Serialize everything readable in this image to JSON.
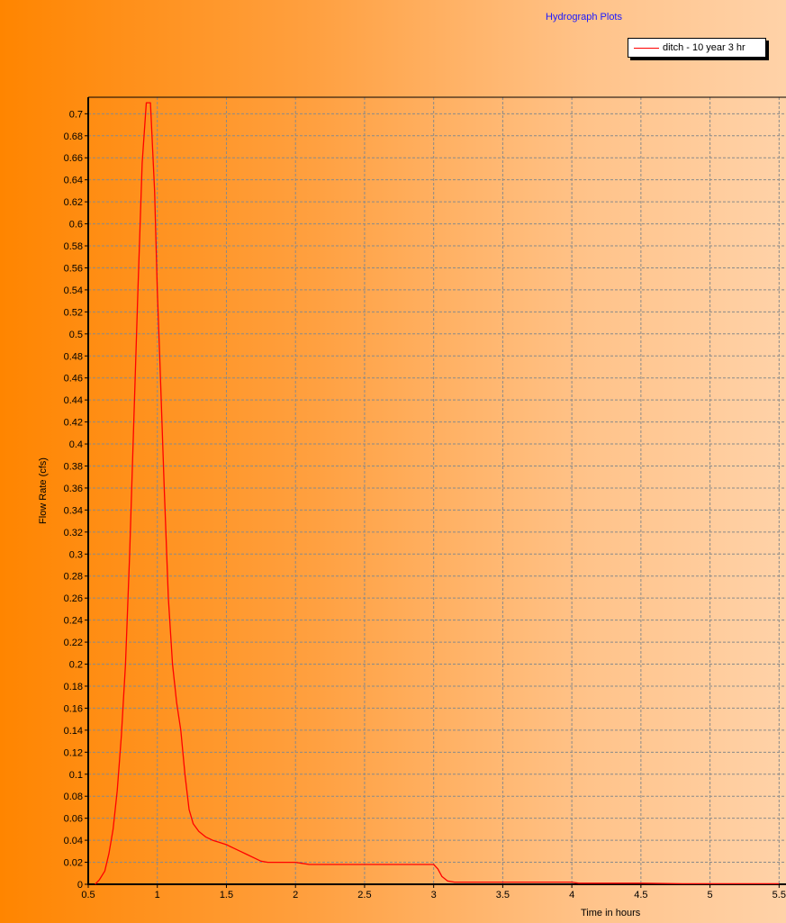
{
  "chart_data": {
    "type": "line",
    "title": "Hydrograph Plots",
    "xlabel": "Time in hours",
    "ylabel": "Flow Rate (cfs)",
    "xlim": [
      0.5,
      5.55
    ],
    "ylim": [
      0,
      0.715
    ],
    "x_ticks": [
      0.5,
      1,
      1.5,
      2,
      2.5,
      3,
      3.5,
      4,
      4.5,
      5,
      5.5
    ],
    "x_tick_labels": [
      "0.5",
      "1",
      "1.5",
      "2",
      "2.5",
      "3",
      "3.5",
      "4",
      "4.5",
      "5",
      "5.5"
    ],
    "y_ticks": [
      0,
      0.02,
      0.04,
      0.06,
      0.08,
      0.1,
      0.12,
      0.14,
      0.16,
      0.18,
      0.2,
      0.22,
      0.24,
      0.26,
      0.28,
      0.3,
      0.32,
      0.34,
      0.36,
      0.38,
      0.4,
      0.42,
      0.44,
      0.46,
      0.48,
      0.5,
      0.52,
      0.54,
      0.56,
      0.58,
      0.6,
      0.62,
      0.64,
      0.66,
      0.68,
      0.7
    ],
    "y_tick_labels": [
      "0",
      "0.02",
      "0.04",
      "0.06",
      "0.08",
      "0.1",
      "0.12",
      "0.14",
      "0.16",
      "0.18",
      "0.2",
      "0.22",
      "0.24",
      "0.26",
      "0.28",
      "0.3",
      "0.32",
      "0.34",
      "0.36",
      "0.38",
      "0.4",
      "0.42",
      "0.44",
      "0.46",
      "0.48",
      "0.5",
      "0.52",
      "0.54",
      "0.56",
      "0.58",
      "0.6",
      "0.62",
      "0.64",
      "0.66",
      "0.68",
      "0.7"
    ],
    "grid": true,
    "legend_position": "top-right",
    "series": [
      {
        "name": "ditch - 10 year 3 hr",
        "color": "#ff0000",
        "x": [
          0.55,
          0.58,
          0.62,
          0.65,
          0.68,
          0.71,
          0.74,
          0.77,
          0.8,
          0.83,
          0.86,
          0.89,
          0.92,
          0.95,
          0.98,
          1.0,
          1.02,
          1.05,
          1.08,
          1.11,
          1.14,
          1.17,
          1.2,
          1.23,
          1.26,
          1.3,
          1.35,
          1.4,
          1.45,
          1.5,
          1.55,
          1.6,
          1.65,
          1.7,
          1.75,
          1.8,
          1.9,
          2.0,
          2.05,
          2.1,
          2.2,
          2.3,
          2.4,
          2.5,
          2.6,
          2.7,
          2.8,
          2.9,
          3.0,
          3.03,
          3.06,
          3.1,
          3.15,
          3.2,
          3.5,
          4.0,
          4.05,
          4.1,
          4.5,
          4.8,
          5.0,
          5.5
        ],
        "y": [
          0.0,
          0.004,
          0.012,
          0.028,
          0.05,
          0.085,
          0.135,
          0.2,
          0.3,
          0.42,
          0.54,
          0.655,
          0.71,
          0.71,
          0.63,
          0.54,
          0.47,
          0.36,
          0.26,
          0.2,
          0.165,
          0.14,
          0.1,
          0.068,
          0.055,
          0.048,
          0.043,
          0.04,
          0.038,
          0.036,
          0.033,
          0.03,
          0.027,
          0.024,
          0.021,
          0.02,
          0.02,
          0.02,
          0.019,
          0.018,
          0.018,
          0.018,
          0.018,
          0.018,
          0.018,
          0.018,
          0.018,
          0.018,
          0.018,
          0.014,
          0.007,
          0.003,
          0.002,
          0.002,
          0.002,
          0.002,
          0.001,
          0.001,
          0.001,
          0.0005,
          0.0005,
          0.0005
        ]
      }
    ]
  }
}
